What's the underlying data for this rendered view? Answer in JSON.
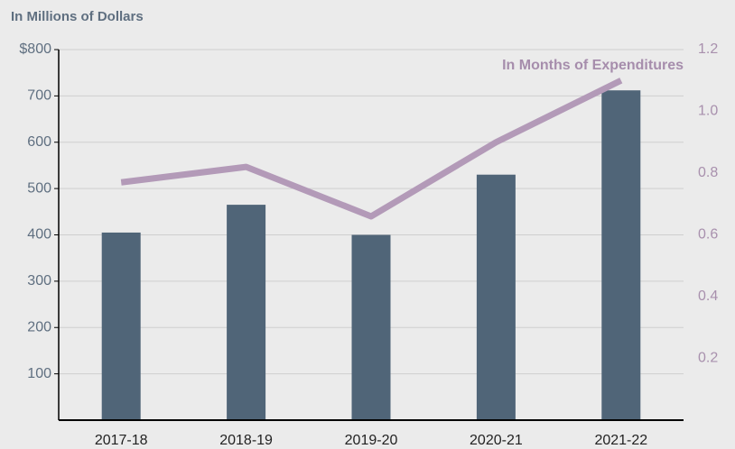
{
  "chart_data": {
    "type": "bar_line",
    "y_label": "In Millions of Dollars",
    "categories": [
      "2017-18",
      "2018-19",
      "2019-20",
      "2020-21",
      "2021-22"
    ],
    "series": [
      {
        "type": "bar",
        "color": "#506578",
        "values": [
          405,
          465,
          400,
          530,
          712
        ]
      },
      {
        "type": "line",
        "name": "In Months of Expenditures",
        "color": "#b39ab8",
        "axis": "y2",
        "values": [
          0.77,
          0.82,
          0.66,
          0.9,
          1.1
        ]
      }
    ],
    "ylim": [
      0,
      800
    ],
    "yticks": [
      100,
      200,
      300,
      400,
      500,
      600,
      700,
      {
        "value": 800,
        "label": "$800"
      }
    ],
    "y2lim": [
      0,
      1.2
    ],
    "y2ticks": [
      0.2,
      0.4,
      0.6,
      0.8,
      {
        "value": 1,
        "label": "1.0"
      },
      1.2
    ],
    "grid": true
  }
}
